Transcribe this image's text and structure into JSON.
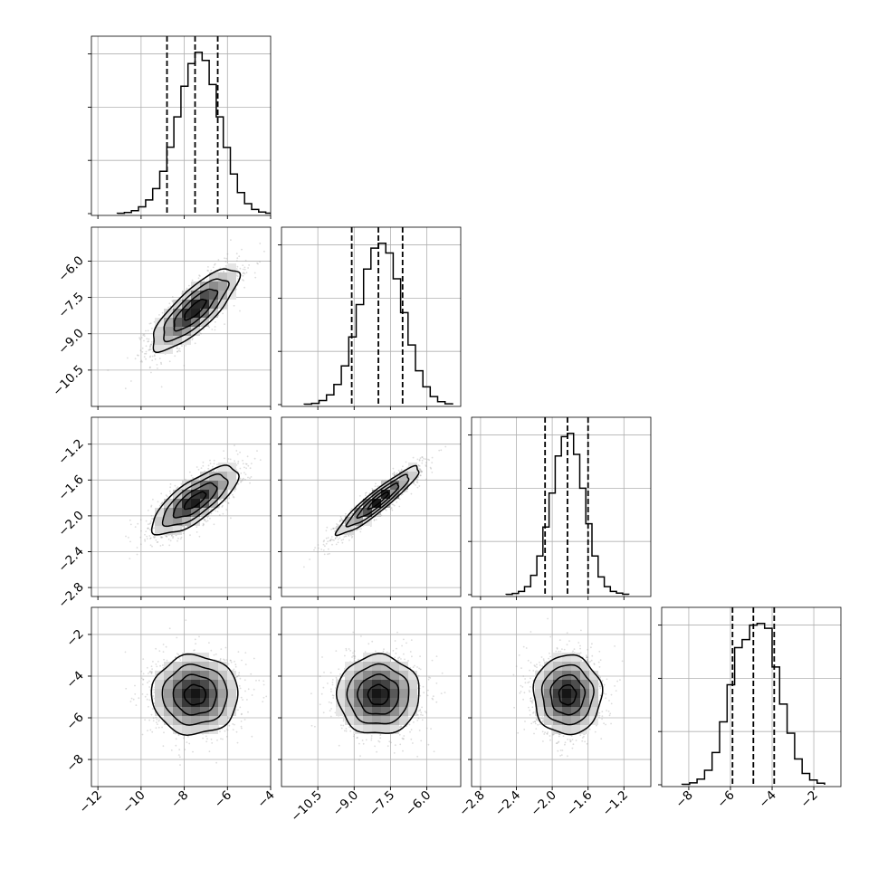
{
  "chart_data": {
    "type": "corner",
    "grid": true,
    "num_parameters": 4,
    "parameters": [
      {
        "range": [
          -12.3,
          -4.0
        ],
        "ticks": [
          -12,
          -10,
          -8,
          -6,
          -4
        ],
        "tick_labels": [
          "−12",
          "−10",
          "−8",
          "−6",
          "−4"
        ],
        "mean": -7.5,
        "sd": 1.0,
        "quantiles": [
          -8.8,
          -7.5,
          -6.45
        ]
      },
      {
        "range": [
          -12.0,
          -4.6
        ],
        "ticks": [
          -10.5,
          -9.0,
          -7.5,
          -6.0
        ],
        "tick_labels": [
          "−10.5",
          "−9.0",
          "−7.5",
          "−6.0"
        ],
        "mean": -8.0,
        "sd": 0.85,
        "quantiles": [
          -9.1,
          -8.0,
          -7.0
        ]
      },
      {
        "range": [
          -2.9,
          -0.9
        ],
        "ticks": [
          -2.8,
          -2.4,
          -2.0,
          -1.6,
          -1.2
        ],
        "tick_labels": [
          "−2.8",
          "−2.4",
          "−2.0",
          "−1.6",
          "−1.2"
        ],
        "mean": -1.83,
        "sd": 0.19,
        "quantiles": [
          -2.08,
          -1.83,
          -1.6
        ]
      },
      {
        "range": [
          -9.3,
          -0.7
        ],
        "ticks": [
          -8,
          -6,
          -4,
          -2
        ],
        "tick_labels": [
          "−8",
          "−6",
          "−4",
          "−2"
        ],
        "mean": -4.9,
        "sd": 0.95,
        "quantiles": [
          -5.9,
          -4.9,
          -3.9
        ]
      }
    ],
    "correlations": {
      "1-0": 0.8,
      "2-0": 0.75,
      "2-1": 0.93,
      "3-0": 0.0,
      "3-1": 0.0,
      "3-2": 0.0
    },
    "histograms": [
      [
        0.002,
        0.007,
        0.018,
        0.042,
        0.085,
        0.155,
        0.262,
        0.412,
        0.6,
        0.79,
        0.93,
        1.0,
        0.95,
        0.8,
        0.6,
        0.41,
        0.245,
        0.13,
        0.062,
        0.026,
        0.01,
        0.003
      ],
      [
        0.003,
        0.008,
        0.025,
        0.06,
        0.125,
        0.24,
        0.42,
        0.62,
        0.84,
        0.97,
        1.0,
        0.94,
        0.78,
        0.57,
        0.37,
        0.21,
        0.11,
        0.05,
        0.018,
        0.005
      ],
      [
        0.002,
        0.008,
        0.02,
        0.05,
        0.12,
        0.24,
        0.42,
        0.63,
        0.86,
        0.98,
        1.0,
        0.87,
        0.66,
        0.44,
        0.24,
        0.11,
        0.05,
        0.02,
        0.01,
        0.003
      ],
      [
        0.003,
        0.012,
        0.035,
        0.09,
        0.2,
        0.39,
        0.62,
        0.85,
        0.9,
        0.99,
        1.0,
        0.97,
        0.73,
        0.5,
        0.32,
        0.16,
        0.07,
        0.03,
        0.01
      ]
    ],
    "y_axis_labels_row_params": [
      1,
      2,
      3
    ],
    "x_axis_labels_col_params": [
      0,
      1,
      2,
      3
    ]
  }
}
